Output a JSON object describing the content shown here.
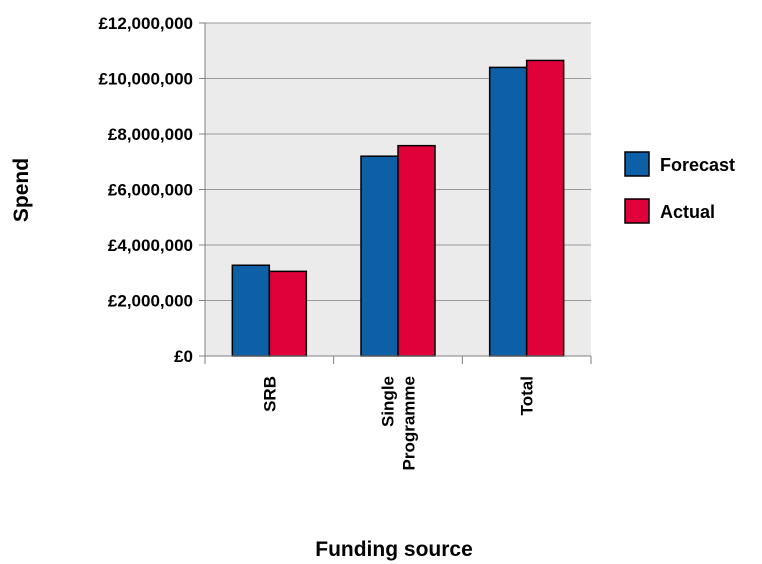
{
  "chart_data": {
    "type": "bar",
    "categories": [
      "SRB",
      "Single Programme",
      "Total"
    ],
    "category_lines": [
      [
        "SRB"
      ],
      [
        "Single",
        "Programme"
      ],
      [
        "Total"
      ]
    ],
    "series": [
      {
        "name": "Forecast",
        "color": "#0d5fa6",
        "values": [
          3270000,
          7200000,
          10400000
        ]
      },
      {
        "name": "Actual",
        "color": "#e0003a",
        "values": [
          3050000,
          7580000,
          10650000
        ]
      }
    ],
    "xlabel": "Funding source",
    "ylabel": "Spend",
    "ylim": [
      0,
      12000000
    ],
    "yticks": [
      0,
      2000000,
      4000000,
      6000000,
      8000000,
      10000000,
      12000000
    ],
    "ytick_labels": [
      "£0",
      "£2,000,000",
      "£4,000,000",
      "£6,000,000",
      "£8,000,000",
      "£10,000,000",
      "£12,000,000"
    ],
    "grid": true,
    "plot_background": "#ebebeb",
    "legend_position": "right"
  }
}
